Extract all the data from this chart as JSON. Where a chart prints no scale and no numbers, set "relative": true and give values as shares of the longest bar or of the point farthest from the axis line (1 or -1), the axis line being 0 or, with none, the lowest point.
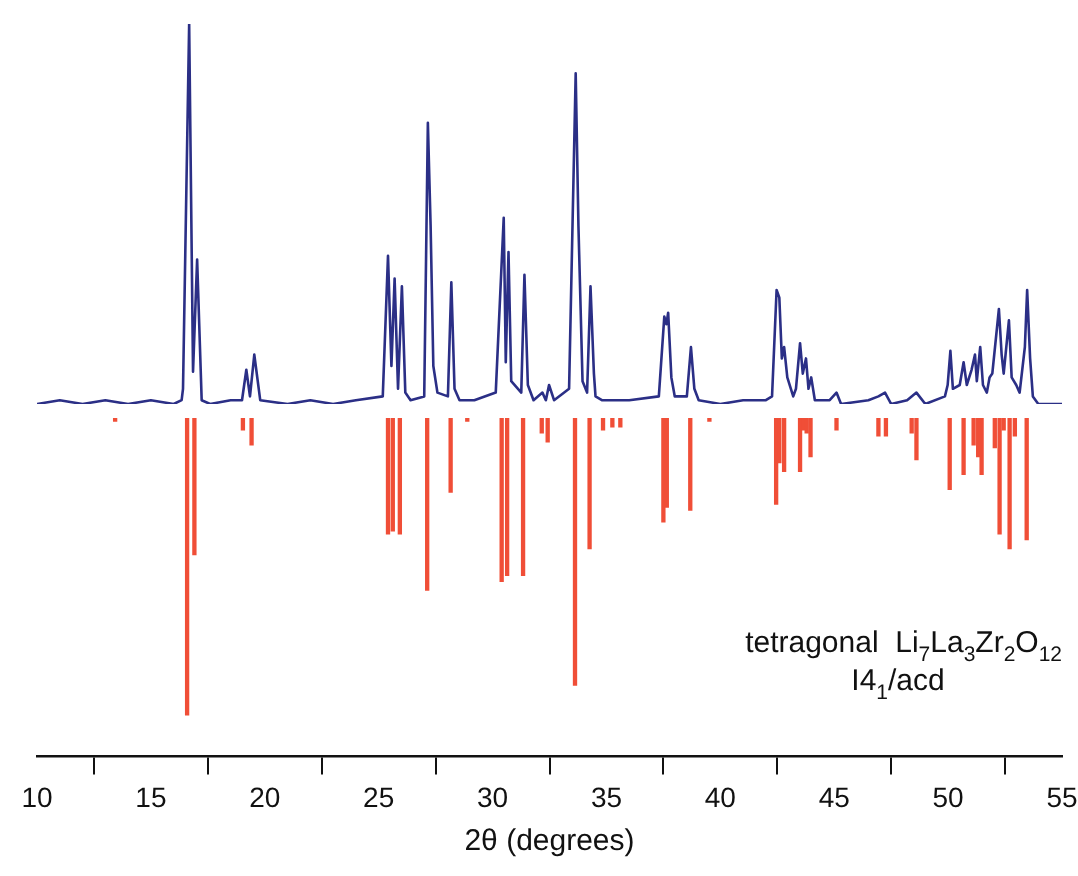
{
  "chart_data": [
    {
      "type": "line",
      "relative": true,
      "xlim": [
        10,
        55
      ],
      "tick_labels": false,
      "grid": false,
      "legend": false,
      "marker": "none",
      "series": [
        {
          "color": "#2b2f86",
          "x": [
            10,
            11,
            12,
            13,
            14,
            15,
            16,
            16.35,
            16.41,
            16.68,
            16.85,
            17.03,
            17.23,
            17.6,
            18.5,
            19.0,
            19.19,
            19.35,
            19.54,
            19.8,
            21,
            22,
            23,
            24,
            25.18,
            25.41,
            25.56,
            25.7,
            25.85,
            26.02,
            26.17,
            26.4,
            27.0,
            27.16,
            27.28,
            27.4,
            27.58,
            28.04,
            28.19,
            28.33,
            28.55,
            29.2,
            30.14,
            30.49,
            30.58,
            30.7,
            30.82,
            31.26,
            31.4,
            31.55,
            31.8,
            32.19,
            32.34,
            32.48,
            32.7,
            33.36,
            33.65,
            33.77,
            33.95,
            34.15,
            34.3,
            34.45,
            34.52,
            34.8,
            36,
            37.3,
            37.54,
            37.63,
            37.71,
            37.85,
            38.0,
            38.53,
            38.71,
            38.86,
            39.05,
            40,
            41,
            42.0,
            42.27,
            42.47,
            42.59,
            42.7,
            42.8,
            42.94,
            43.2,
            43.32,
            43.5,
            43.62,
            43.76,
            43.87,
            43.99,
            44.15,
            44.8,
            45.1,
            45.3,
            46.5,
            46.94,
            47.23,
            47.5,
            48.2,
            48.61,
            49.0,
            49.86,
            49.98,
            50.1,
            50.21,
            50.51,
            50.68,
            50.82,
            51.03,
            51.18,
            51.26,
            51.41,
            51.53,
            51.7,
            51.82,
            51.94,
            52.23,
            52.35,
            52.44,
            52.67,
            52.79,
            52.99,
            53.14,
            53.37,
            53.47,
            53.6,
            53.72,
            53.96,
            55
          ],
          "values": [
            0,
            0.01,
            0,
            0.01,
            0,
            0.01,
            0,
            0.01,
            0.04,
            1,
            0.085,
            0.38,
            0.01,
            0,
            0.01,
            0.01,
            0.09,
            0.02,
            0.13,
            0.01,
            0,
            0.01,
            0,
            0.01,
            0.02,
            0.39,
            0.1,
            0.33,
            0.04,
            0.31,
            0.03,
            0.01,
            0.02,
            0.74,
            0.47,
            0.1,
            0.03,
            0.02,
            0.32,
            0.04,
            0.01,
            0.01,
            0.03,
            0.49,
            0.11,
            0.4,
            0.06,
            0.03,
            0.34,
            0.05,
            0.01,
            0.03,
            0.01,
            0.05,
            0.01,
            0.04,
            0.87,
            0.47,
            0.06,
            0.03,
            0.31,
            0.08,
            0.02,
            0.01,
            0.01,
            0.02,
            0.23,
            0.21,
            0.24,
            0.07,
            0.02,
            0.02,
            0.15,
            0.04,
            0.01,
            0,
            0.01,
            0.01,
            0.02,
            0.3,
            0.28,
            0.12,
            0.15,
            0.07,
            0.02,
            0.04,
            0.16,
            0.08,
            0.12,
            0.04,
            0.07,
            0.01,
            0.01,
            0.03,
            0,
            0.01,
            0.02,
            0.03,
            0,
            0.01,
            0.03,
            0,
            0.02,
            0.05,
            0.14,
            0.04,
            0.05,
            0.11,
            0.05,
            0.09,
            0.13,
            0.06,
            0.15,
            0.05,
            0.03,
            0.07,
            0.08,
            0.25,
            0.13,
            0.08,
            0.22,
            0.07,
            0.05,
            0.03,
            0.15,
            0.3,
            0.12,
            0.02,
            0,
            0
          ]
        }
      ]
    },
    {
      "type": "bar",
      "relative": true,
      "xlabel": "2θ (degrees)",
      "xlim": [
        10,
        55
      ],
      "xticks": [
        10,
        15,
        20,
        25,
        30,
        35,
        40,
        45,
        50,
        55
      ],
      "tick_labels": "x",
      "grid": false,
      "legend": false,
      "annotations": [
        "tetragonal  Li$_{7}$La$_{3}$Zr$_{2}$O$_{12}$",
        "I4$_{1}$/acd"
      ],
      "series": [
        {
          "color": "#f04e37",
          "x": [
            13.43,
            16.59,
            16.91,
            19.04,
            19.42,
            25.41,
            25.62,
            25.93,
            27.13,
            28.16,
            28.89,
            30.4,
            30.64,
            31.34,
            32.16,
            32.42,
            33.62,
            34.26,
            34.85,
            35.26,
            35.61,
            37.5,
            37.65,
            38.68,
            39.52,
            42.45,
            42.59,
            42.8,
            43.5,
            43.64,
            43.79,
            43.96,
            45.1,
            46.94,
            47.27,
            48.4,
            48.61,
            50.07,
            50.68,
            51.12,
            51.24,
            51.32,
            51.47,
            52.05,
            52.26,
            52.44,
            52.7,
            52.93,
            53.45
          ],
          "values": [
            -0.01,
            -1,
            -0.46,
            -0.04,
            -0.09,
            -0.39,
            -0.38,
            -0.39,
            -0.58,
            -0.25,
            -0.01,
            -0.55,
            -0.53,
            -0.53,
            -0.05,
            -0.08,
            -0.9,
            -0.44,
            -0.04,
            -0.03,
            -0.03,
            -0.35,
            -0.3,
            -0.31,
            -0.01,
            -0.29,
            -0.15,
            -0.18,
            -0.18,
            -0.04,
            -0.05,
            -0.13,
            -0.04,
            -0.06,
            -0.06,
            -0.05,
            -0.14,
            -0.24,
            -0.19,
            -0.09,
            null,
            -0.13,
            -0.19,
            -0.1,
            -0.39,
            -0.04,
            -0.44,
            -0.06,
            -0.41
          ]
        }
      ]
    }
  ]
}
